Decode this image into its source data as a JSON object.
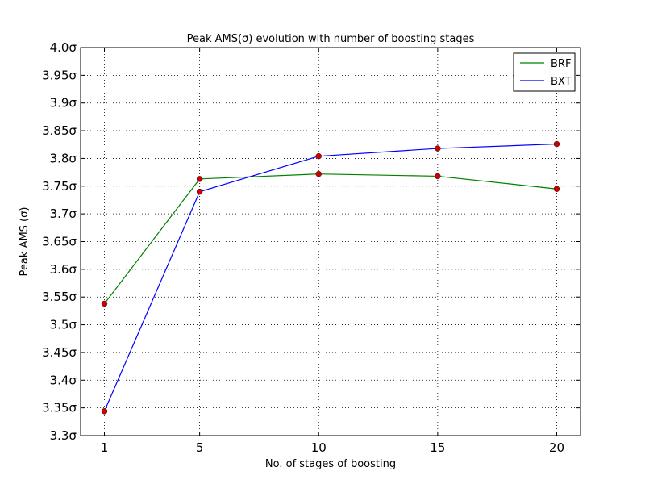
{
  "chart_data": {
    "type": "line",
    "title": "Peak AMS(σ) evolution with number of boosting stages",
    "xlabel": "No. of stages of boosting",
    "ylabel": "Peak AMS (σ)",
    "x": [
      1,
      5,
      10,
      15,
      20
    ],
    "x_ticks": [
      "1",
      "5",
      "10",
      "15",
      "20"
    ],
    "xlim": [
      0,
      21
    ],
    "ylim": [
      3.3,
      4.0
    ],
    "y_ticks": [
      3.3,
      3.35,
      3.4,
      3.45,
      3.5,
      3.55,
      3.6,
      3.65,
      3.7,
      3.75,
      3.8,
      3.85,
      3.9,
      3.95,
      4.0
    ],
    "y_tick_labels": [
      "3.3σ",
      "3.35σ",
      "3.4σ",
      "3.45σ",
      "3.5σ",
      "3.55σ",
      "3.6σ",
      "3.65σ",
      "3.7σ",
      "3.75σ",
      "3.8σ",
      "3.85σ",
      "3.9σ",
      "3.95σ",
      "4.0σ"
    ],
    "grid": true,
    "legend_position": "top-right",
    "marker_color": "#cc0000",
    "series": [
      {
        "name": "BRF",
        "color": "#008000",
        "values": [
          3.538,
          3.763,
          3.772,
          3.768,
          3.745
        ]
      },
      {
        "name": "BXT",
        "color": "#0000ff",
        "values": [
          3.344,
          3.74,
          3.804,
          3.818,
          3.826
        ]
      }
    ]
  }
}
